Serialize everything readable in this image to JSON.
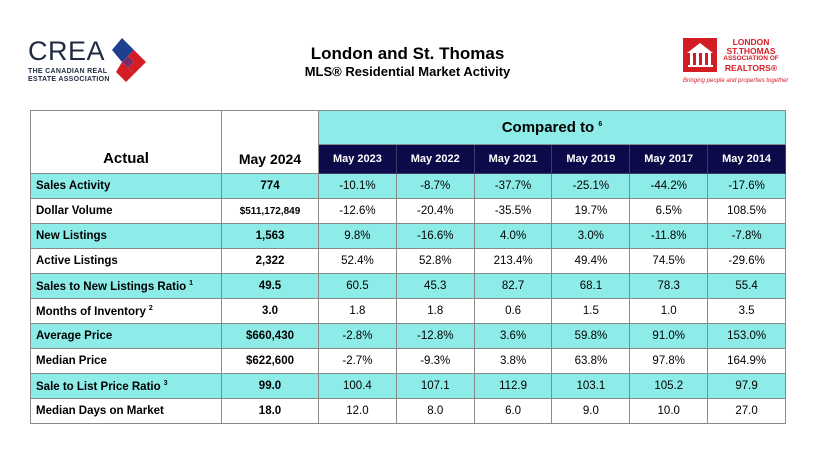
{
  "header": {
    "title": "London and St. Thomas",
    "subtitle": "MLS® Residential Market Activity"
  },
  "crea_logo": {
    "wordmark": "CREA",
    "line1": "THE CANADIAN REAL",
    "line2": "ESTATE ASSOCIATION",
    "colors": {
      "blue": "#1f3f8f",
      "red": "#d41c24",
      "navy": "#1f2a44"
    }
  },
  "lst_logo": {
    "line1": "LONDON",
    "line2": "ST.THOMAS",
    "line3": "ASSOCIATION OF",
    "line4": "REALTORS®",
    "tagline": "Bringing people and properties together",
    "color": "#d41c24"
  },
  "table": {
    "actual_header": "Actual",
    "current_header": "May 2024",
    "compared_header": "Compared to",
    "compared_sup": "6",
    "years": [
      "May 2023",
      "May 2022",
      "May 2021",
      "May 2019",
      "May 2017",
      "May 2014"
    ],
    "colors": {
      "teal": "#8eece8",
      "navy": "#0d0a4a"
    },
    "rows": [
      {
        "label": "Sales Activity",
        "sup": "",
        "actual": "774",
        "values": [
          "-10.1%",
          "-8.7%",
          "-37.7%",
          "-25.1%",
          "-44.2%",
          "-17.6%"
        ]
      },
      {
        "label": "Dollar Volume",
        "sup": "",
        "actual": "$511,172,849",
        "values": [
          "-12.6%",
          "-20.4%",
          "-35.5%",
          "19.7%",
          "6.5%",
          "108.5%"
        ]
      },
      {
        "label": "New Listings",
        "sup": "",
        "actual": "1,563",
        "values": [
          "9.8%",
          "-16.6%",
          "4.0%",
          "3.0%",
          "-11.8%",
          "-7.8%"
        ]
      },
      {
        "label": "Active Listings",
        "sup": "",
        "actual": "2,322",
        "values": [
          "52.4%",
          "52.8%",
          "213.4%",
          "49.4%",
          "74.5%",
          "-29.6%"
        ]
      },
      {
        "label": "Sales to New Listings Ratio",
        "sup": "1",
        "actual": "49.5",
        "values": [
          "60.5",
          "45.3",
          "82.7",
          "68.1",
          "78.3",
          "55.4"
        ]
      },
      {
        "label": "Months of Inventory",
        "sup": "2",
        "actual": "3.0",
        "values": [
          "1.8",
          "1.8",
          "0.6",
          "1.5",
          "1.0",
          "3.5"
        ]
      },
      {
        "label": "Average Price",
        "sup": "",
        "actual": "$660,430",
        "values": [
          "-2.8%",
          "-12.8%",
          "3.6%",
          "59.8%",
          "91.0%",
          "153.0%"
        ]
      },
      {
        "label": "Median Price",
        "sup": "",
        "actual": "$622,600",
        "values": [
          "-2.7%",
          "-9.3%",
          "3.8%",
          "63.8%",
          "97.8%",
          "164.9%"
        ]
      },
      {
        "label": "Sale to List Price Ratio",
        "sup": "3",
        "actual": "99.0",
        "values": [
          "100.4",
          "107.1",
          "112.9",
          "103.1",
          "105.2",
          "97.9"
        ]
      },
      {
        "label": "Median Days on Market",
        "sup": "",
        "actual": "18.0",
        "values": [
          "12.0",
          "8.0",
          "6.0",
          "9.0",
          "10.0",
          "27.0"
        ]
      }
    ]
  }
}
